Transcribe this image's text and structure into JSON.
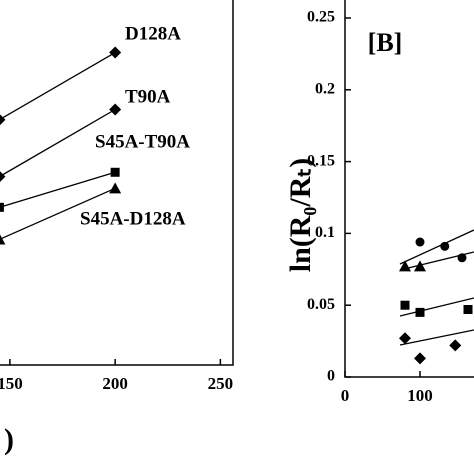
{
  "chart_data": [
    {
      "type": "scatter",
      "x_label": ")",
      "xlim": [
        145,
        256
      ],
      "ylim": [
        0,
        0.25
      ],
      "xticks": [
        150,
        200,
        250
      ],
      "series": [
        {
          "name": "D128A",
          "marker": "diamond",
          "color": "#000000",
          "x": [
            145,
            200
          ],
          "values": [
            0.168,
            0.214
          ]
        },
        {
          "name": "T90A",
          "marker": "diamond",
          "color": "#000000",
          "x": [
            145,
            200
          ],
          "values": [
            0.129,
            0.175
          ]
        },
        {
          "name": "S45A-T90A",
          "marker": "square",
          "color": "#000000",
          "x": [
            145,
            200
          ],
          "values": [
            0.108,
            0.132
          ]
        },
        {
          "name": "S45A-D128A",
          "marker": "triangle",
          "color": "#000000",
          "x": [
            145,
            200
          ],
          "values": [
            0.086,
            0.121
          ]
        }
      ]
    },
    {
      "type": "scatter",
      "title": "[B]",
      "y_label": "ln(R₀/Rₜ)",
      "xlim": [
        0,
        172
      ],
      "ylim": [
        0,
        0.25
      ],
      "xticks": [
        0,
        100
      ],
      "yticks": [
        0,
        0.05,
        0.1,
        0.15,
        0.2,
        0.25
      ],
      "series": [
        {
          "marker": "circle",
          "color": "#000000",
          "x": [
            100,
            133,
            156
          ],
          "values": [
            0.094,
            0.091,
            0.083
          ]
        },
        {
          "marker": "triangle",
          "color": "#000000",
          "x": [
            80,
            100
          ],
          "values": [
            0.077,
            0.077
          ]
        },
        {
          "marker": "square",
          "color": "#000000",
          "x": [
            80,
            100,
            164
          ],
          "values": [
            0.05,
            0.045,
            0.047
          ]
        },
        {
          "marker": "diamond",
          "color": "#000000",
          "x": [
            80,
            100,
            147
          ],
          "values": [
            0.027,
            0.013,
            0.022
          ]
        }
      ]
    }
  ]
}
